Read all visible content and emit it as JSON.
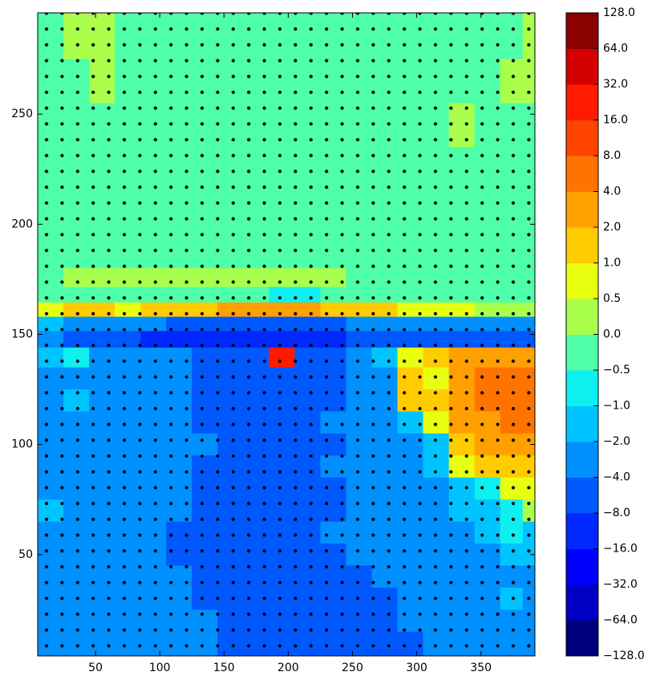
{
  "chart_data": {
    "type": "contour",
    "x": [
      15,
      35,
      55,
      75,
      95,
      115,
      135,
      155,
      175,
      195,
      215,
      235,
      255,
      275,
      295,
      315,
      335,
      355,
      375,
      390
    ],
    "y": [
      285,
      265,
      245,
      225,
      205,
      185,
      175,
      168,
      161,
      155,
      148,
      140,
      130,
      120,
      110,
      100,
      90,
      80,
      70,
      60,
      50,
      40,
      30,
      20,
      10
    ],
    "z": [
      [
        -0.3,
        0.3,
        0.3,
        -0.3,
        -0.3,
        -0.3,
        -0.3,
        -0.3,
        -0.3,
        -0.3,
        -0.3,
        -0.3,
        -0.3,
        -0.3,
        -0.3,
        -0.3,
        -0.3,
        -0.3,
        -0.3,
        0.3
      ],
      [
        -0.3,
        -0.3,
        0.3,
        -0.3,
        -0.3,
        -0.3,
        -0.3,
        -0.3,
        -0.3,
        -0.3,
        -0.3,
        -0.3,
        -0.3,
        -0.3,
        -0.3,
        -0.3,
        -0.3,
        -0.3,
        0.3,
        0.3
      ],
      [
        -0.3,
        -0.3,
        -0.3,
        -0.3,
        -0.3,
        -0.3,
        -0.3,
        -0.3,
        -0.3,
        -0.3,
        -0.3,
        -0.3,
        -0.3,
        -0.3,
        -0.3,
        -0.3,
        0.3,
        -0.3,
        -0.3,
        -0.3
      ],
      [
        -0.3,
        -0.3,
        -0.3,
        -0.3,
        -0.3,
        -0.3,
        -0.3,
        -0.3,
        -0.3,
        -0.3,
        -0.3,
        -0.3,
        -0.3,
        -0.3,
        -0.3,
        -0.3,
        -0.3,
        -0.3,
        -0.3,
        -0.3
      ],
      [
        -0.3,
        -0.3,
        -0.3,
        -0.3,
        -0.3,
        -0.3,
        -0.3,
        -0.3,
        -0.3,
        -0.3,
        -0.3,
        -0.3,
        -0.3,
        -0.3,
        -0.3,
        -0.3,
        -0.3,
        -0.3,
        -0.3,
        -0.3
      ],
      [
        -0.3,
        -0.3,
        -0.3,
        -0.3,
        -0.3,
        -0.3,
        -0.3,
        -0.3,
        -0.3,
        -0.3,
        -0.3,
        -0.3,
        -0.3,
        -0.3,
        -0.3,
        -0.3,
        -0.3,
        -0.3,
        -0.3,
        -0.3
      ],
      [
        -0.3,
        0.3,
        0.3,
        0.3,
        0.3,
        0.3,
        0.3,
        0.3,
        0.3,
        0.3,
        0.3,
        0.3,
        -0.3,
        -0.3,
        -0.3,
        -0.3,
        -0.3,
        -0.3,
        -0.3,
        -0.3
      ],
      [
        -0.3,
        -0.3,
        -0.3,
        -0.3,
        -0.3,
        -0.3,
        -0.3,
        -0.3,
        -0.3,
        -0.7,
        -0.7,
        -0.3,
        -0.3,
        -0.3,
        -0.3,
        -0.3,
        -0.3,
        -0.3,
        -0.3,
        -0.3
      ],
      [
        0.7,
        1.5,
        1.5,
        0.7,
        1.5,
        1.5,
        1.5,
        3,
        3,
        3,
        3,
        1.5,
        1.5,
        1.5,
        0.7,
        0.7,
        0.7,
        0.3,
        0.3,
        0.3
      ],
      [
        -1.5,
        -3,
        -3,
        -3,
        -3,
        -6,
        -6,
        -6,
        -6,
        -6,
        -6,
        -6,
        -3,
        -3,
        -3,
        -3,
        -3,
        -3,
        -3,
        -3
      ],
      [
        -3,
        -6,
        -6,
        -6,
        -12,
        -12,
        -12,
        -12,
        -12,
        -12,
        -12,
        -12,
        -6,
        -6,
        -6,
        -6,
        -6,
        -6,
        -6,
        -6
      ],
      [
        -1.5,
        -0.7,
        -3,
        -3,
        -3,
        -3,
        -6,
        -6,
        -6,
        24,
        -6,
        -6,
        -3,
        -1.5,
        0.7,
        1.5,
        3,
        3,
        3,
        3
      ],
      [
        -3,
        -3,
        -3,
        -3,
        -3,
        -3,
        -6,
        -6,
        -6,
        -6,
        -6,
        -6,
        -3,
        -3,
        1.5,
        0.7,
        3,
        6,
        6,
        6
      ],
      [
        -3,
        -1.5,
        -3,
        -3,
        -3,
        -3,
        -6,
        -6,
        -6,
        -6,
        -6,
        -6,
        -3,
        -3,
        1.5,
        1.5,
        3,
        6,
        6,
        6
      ],
      [
        -3,
        -3,
        -3,
        -3,
        -3,
        -3,
        -6,
        -6,
        -6,
        -6,
        -6,
        -3,
        -3,
        -3,
        -1.5,
        0.7,
        3,
        3,
        6,
        6
      ],
      [
        -3,
        -3,
        -3,
        -3,
        -3,
        -3,
        -3,
        -6,
        -6,
        -6,
        -6,
        -6,
        -3,
        -3,
        -3,
        -1.5,
        1.5,
        3,
        3,
        3
      ],
      [
        -3,
        -3,
        -3,
        -3,
        -3,
        -3,
        -6,
        -6,
        -6,
        -6,
        -6,
        -3,
        -3,
        -3,
        -3,
        -1.5,
        0.7,
        1.5,
        1.5,
        1.5
      ],
      [
        -3,
        -3,
        -3,
        -3,
        -3,
        -3,
        -6,
        -6,
        -6,
        -6,
        -6,
        -6,
        -3,
        -3,
        -3,
        -3,
        -1.5,
        -0.7,
        0.7,
        0.7
      ],
      [
        -1.5,
        -3,
        -3,
        -3,
        -3,
        -3,
        -6,
        -6,
        -6,
        -6,
        -6,
        -6,
        -3,
        -3,
        -3,
        -3,
        -1.5,
        -1.5,
        -0.7,
        0.3
      ],
      [
        -3,
        -3,
        -3,
        -3,
        -3,
        -6,
        -6,
        -6,
        -6,
        -6,
        -6,
        -3,
        -3,
        -3,
        -3,
        -3,
        -3,
        -1.5,
        -0.7,
        -1.5
      ],
      [
        -3,
        -3,
        -3,
        -3,
        -3,
        -6,
        -6,
        -6,
        -6,
        -6,
        -6,
        -6,
        -3,
        -3,
        -3,
        -3,
        -3,
        -3,
        -1.5,
        -1.5
      ],
      [
        -3,
        -3,
        -3,
        -3,
        -3,
        -3,
        -6,
        -6,
        -6,
        -6,
        -6,
        -6,
        -6,
        -3,
        -3,
        -3,
        -3,
        -3,
        -3,
        -3
      ],
      [
        -3,
        -3,
        -3,
        -3,
        -3,
        -3,
        -6,
        -6,
        -6,
        -6,
        -6,
        -6,
        -6,
        -6,
        -3,
        -3,
        -3,
        -3,
        -1.5,
        -3
      ],
      [
        -3,
        -3,
        -3,
        -3,
        -3,
        -3,
        -3,
        -6,
        -6,
        -6,
        -6,
        -6,
        -6,
        -6,
        -3,
        -3,
        -3,
        -3,
        -3,
        -3
      ],
      [
        -3,
        -3,
        -3,
        -3,
        -3,
        -3,
        -3,
        -6,
        -6,
        -6,
        -6,
        -6,
        -6,
        -6,
        -6,
        -3,
        -3,
        -3,
        -3,
        -3
      ]
    ],
    "xlim": [
      5,
      392
    ],
    "ylim": [
      4,
      296
    ],
    "xticks": [
      50,
      100,
      150,
      200,
      250,
      300,
      350
    ],
    "yticks": [
      50,
      100,
      150,
      200,
      250
    ],
    "levels": [
      {
        "value": -128,
        "label": "−128.0"
      },
      {
        "value": -64,
        "label": "−64.0"
      },
      {
        "value": -32,
        "label": "−32.0"
      },
      {
        "value": -16,
        "label": "−16.0"
      },
      {
        "value": -8,
        "label": "−8.0"
      },
      {
        "value": -4,
        "label": "−4.0"
      },
      {
        "value": -2,
        "label": "−2.0"
      },
      {
        "value": -1,
        "label": "−1.0"
      },
      {
        "value": -0.5,
        "label": "−0.5"
      },
      {
        "value": 0,
        "label": "0.0"
      },
      {
        "value": 0.5,
        "label": "0.5"
      },
      {
        "value": 1,
        "label": "1.0"
      },
      {
        "value": 2,
        "label": "2.0"
      },
      {
        "value": 4,
        "label": "4.0"
      },
      {
        "value": 8,
        "label": "8.0"
      },
      {
        "value": 16,
        "label": "16.0"
      },
      {
        "value": 32,
        "label": "32.0"
      },
      {
        "value": 64,
        "label": "64.0"
      },
      {
        "value": 128,
        "label": "128.0"
      }
    ],
    "colors": [
      "#00007f",
      "#0000c4",
      "#0000ff",
      "#0028ff",
      "#0058ff",
      "#0090ff",
      "#00c4ff",
      "#0ef0f0",
      "#4dffa8",
      "#aaff4d",
      "#e8ff10",
      "#ffcc00",
      "#ffa000",
      "#ff7400",
      "#ff4400",
      "#ff1a00",
      "#d40000",
      "#8b0000"
    ]
  }
}
